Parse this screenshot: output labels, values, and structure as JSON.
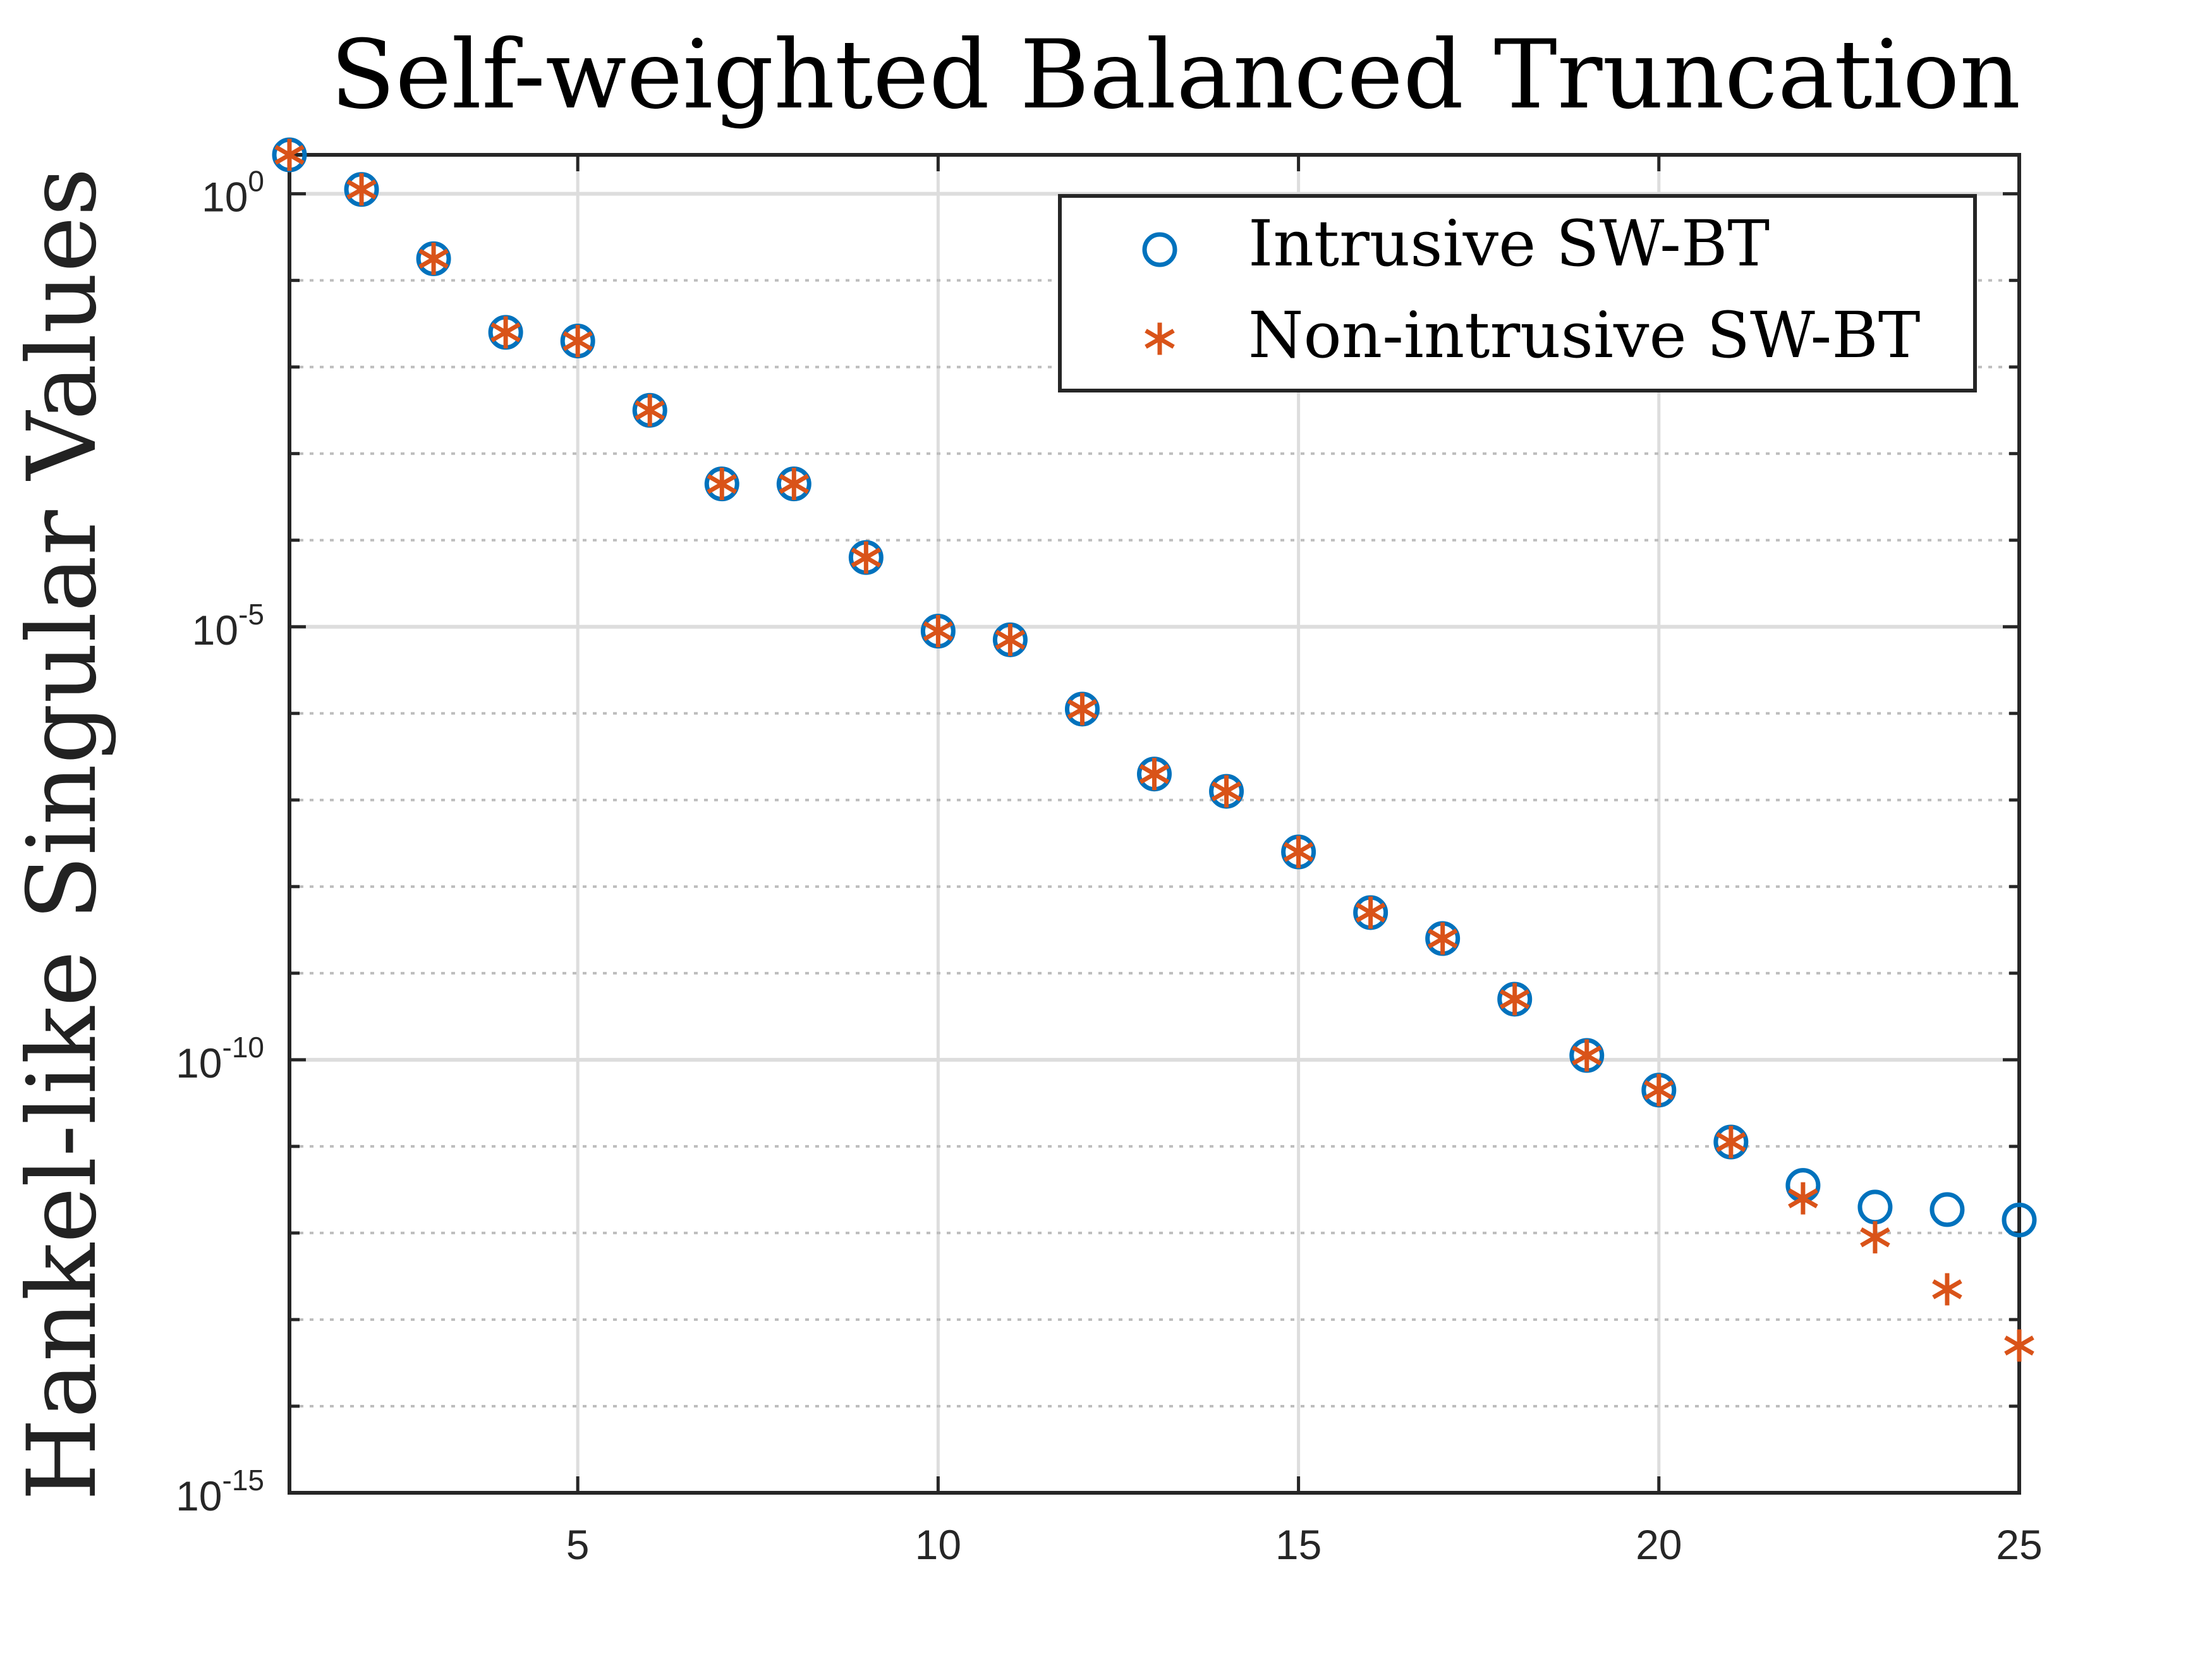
{
  "chart_data": {
    "type": "scatter",
    "title": "Self-weighted Balanced Truncation",
    "xlabel": "",
    "ylabel": "Hankel-like Singular Values",
    "yscale": "log",
    "xlim": [
      1,
      25
    ],
    "ylim_exp": [
      -15,
      0.45
    ],
    "xticks": [
      5,
      10,
      15,
      20,
      25
    ],
    "yticks_exp": [
      0,
      -5,
      -10,
      -15
    ],
    "grid": true,
    "legend_position": "top-right",
    "colors": {
      "intrusive": "#0072BD",
      "nonintrusive": "#D95319"
    },
    "series": [
      {
        "name": "Intrusive SW-BT",
        "marker": "circle",
        "x": [
          1,
          2,
          3,
          4,
          5,
          6,
          7,
          8,
          9,
          10,
          11,
          12,
          13,
          14,
          15,
          16,
          17,
          18,
          19,
          20,
          21,
          22,
          23,
          24,
          25
        ],
        "log10_y": [
          0.45,
          0.05,
          -0.75,
          -1.6,
          -1.7,
          -2.5,
          -3.35,
          -3.35,
          -4.2,
          -5.05,
          -5.15,
          -5.95,
          -6.7,
          -6.9,
          -7.6,
          -8.3,
          -8.6,
          -9.3,
          -9.95,
          -10.35,
          -10.95,
          -11.45,
          -11.7,
          -11.73,
          -11.85
        ]
      },
      {
        "name": "Non-intrusive SW-BT",
        "marker": "asterisk",
        "x": [
          1,
          2,
          3,
          4,
          5,
          6,
          7,
          8,
          9,
          10,
          11,
          12,
          13,
          14,
          15,
          16,
          17,
          18,
          19,
          20,
          21,
          22,
          23,
          24,
          25
        ],
        "log10_y": [
          0.45,
          0.05,
          -0.75,
          -1.6,
          -1.7,
          -2.5,
          -3.35,
          -3.35,
          -4.2,
          -5.05,
          -5.15,
          -5.95,
          -6.7,
          -6.9,
          -7.6,
          -8.3,
          -8.6,
          -9.3,
          -9.95,
          -10.35,
          -10.95,
          -11.6,
          -12.05,
          -12.65,
          -13.3
        ]
      }
    ]
  }
}
